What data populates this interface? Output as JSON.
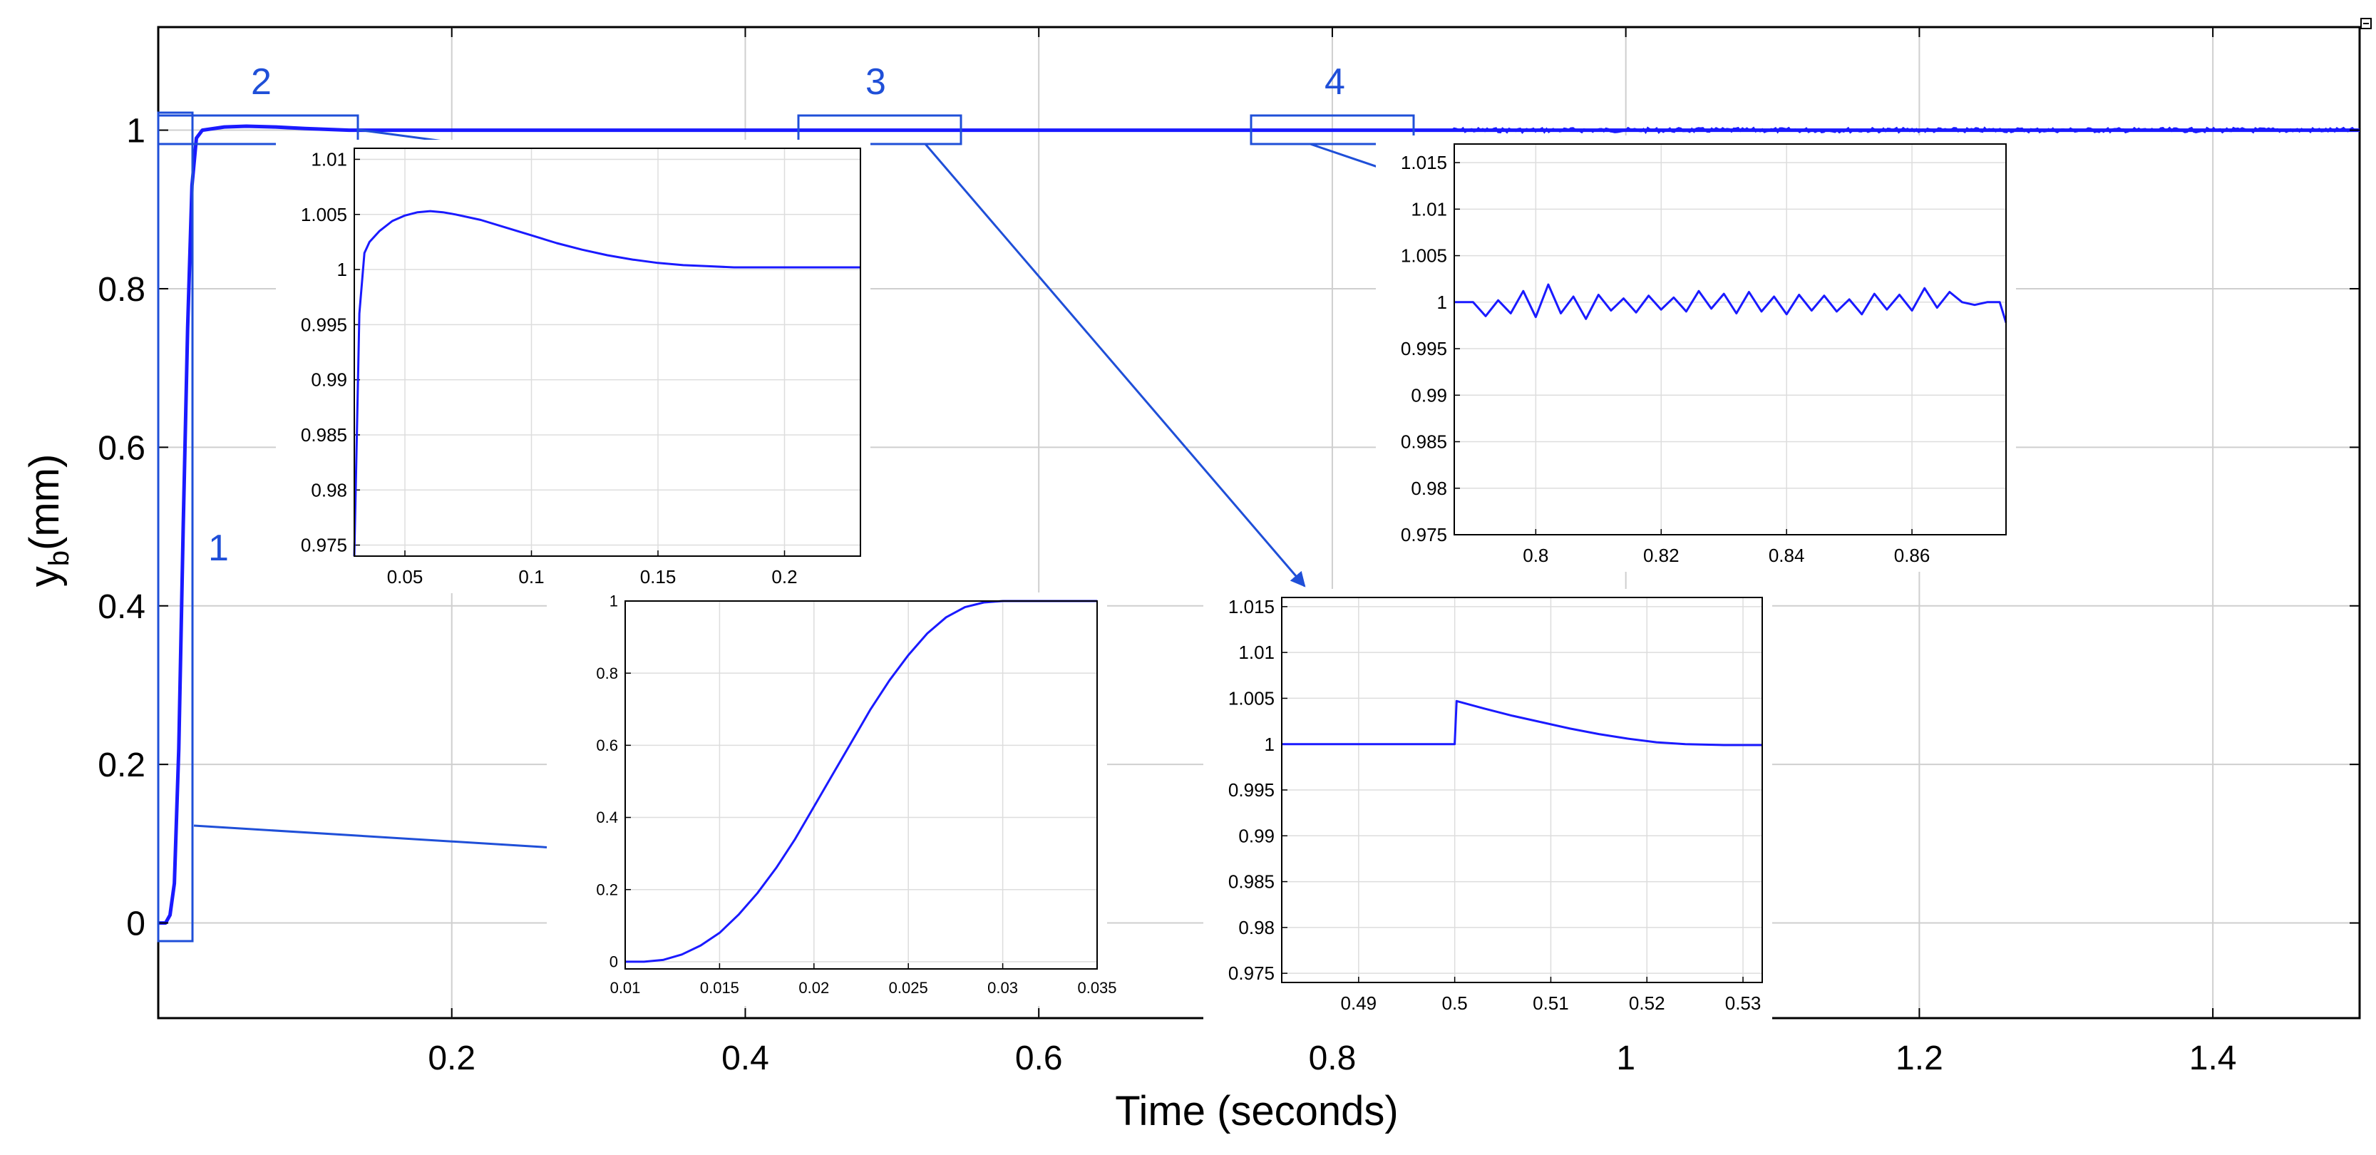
{
  "chart_data": {
    "type": "line",
    "title": "",
    "xlabel": "Time (seconds)",
    "ylabel_main": "y",
    "ylabel_sub": "b",
    "ylabel_unit": "(mm)",
    "line_color": "#1a1aff",
    "annotation_color": "#1f4fd8",
    "main": {
      "xlim": [
        0,
        1.5
      ],
      "ylim": [
        -0.12,
        1.13
      ],
      "xticks": [
        0.2,
        0.4,
        0.6,
        0.8,
        1,
        1.2,
        1.4
      ],
      "xtick_labels": [
        "0.2",
        "0.4",
        "0.6",
        "0.8",
        "1",
        "1.2",
        "1.4"
      ],
      "yticks": [
        0,
        0.2,
        0.4,
        0.6,
        0.8,
        1
      ],
      "ytick_labels": [
        "0",
        "0.2",
        "0.4",
        "0.6",
        "0.8",
        "1"
      ],
      "series": [
        {
          "name": "y_b",
          "x": [
            0,
            0.002,
            0.005,
            0.008,
            0.011,
            0.014,
            0.017,
            0.02,
            0.023,
            0.026,
            0.03,
            0.045,
            0.06,
            0.08,
            0.1,
            0.13,
            0.16,
            0.2,
            0.25,
            0.3,
            0.4,
            0.5,
            0.6,
            0.7,
            0.8,
            0.9,
            1.0,
            1.2,
            1.4,
            1.5
          ],
          "y": [
            0,
            0,
            0,
            0.01,
            0.05,
            0.22,
            0.5,
            0.75,
            0.93,
            0.99,
            1.0,
            1.004,
            1.005,
            1.004,
            1.002,
            1.0,
            1.0,
            1.0,
            1.0,
            1.0,
            1.0,
            1.0,
            1.0,
            1.0,
            1.0,
            1.0,
            1.0,
            1.0,
            1.0,
            1.0
          ]
        }
      ]
    },
    "zoom_labels": [
      "1",
      "2",
      "3",
      "4"
    ],
    "insets": [
      {
        "id": "1",
        "xlim": [
          0.01,
          0.035
        ],
        "ylim": [
          -0.02,
          1.0
        ],
        "xticks": [
          0.01,
          0.015,
          0.02,
          0.025,
          0.03,
          0.035
        ],
        "xtick_labels": [
          "0.01",
          "0.015",
          "0.02",
          "0.025",
          "0.03",
          "0.035"
        ],
        "yticks": [
          0,
          0.2,
          0.4,
          0.6,
          0.8,
          1
        ],
        "ytick_labels": [
          "0",
          "0.2",
          "0.4",
          "0.6",
          "0.8",
          "1"
        ],
        "x": [
          0.01,
          0.011,
          0.012,
          0.013,
          0.014,
          0.015,
          0.016,
          0.017,
          0.018,
          0.019,
          0.02,
          0.021,
          0.022,
          0.023,
          0.024,
          0.025,
          0.026,
          0.027,
          0.028,
          0.029,
          0.03,
          0.031,
          0.033,
          0.035
        ],
        "y": [
          0,
          0,
          0.005,
          0.02,
          0.045,
          0.08,
          0.13,
          0.19,
          0.26,
          0.34,
          0.43,
          0.52,
          0.61,
          0.7,
          0.78,
          0.85,
          0.91,
          0.955,
          0.983,
          0.996,
          1.0,
          1.0,
          1.0,
          1.0
        ]
      },
      {
        "id": "2",
        "xlim": [
          0.03,
          0.23
        ],
        "ylim": [
          0.974,
          1.011
        ],
        "xticks": [
          0.05,
          0.1,
          0.15,
          0.2
        ],
        "xtick_labels": [
          "0.05",
          "0.1",
          "0.15",
          "0.2"
        ],
        "yticks": [
          0.975,
          0.98,
          0.985,
          0.99,
          0.995,
          1,
          1.005,
          1.01
        ],
        "ytick_labels": [
          "0.975",
          "0.98",
          "0.985",
          "0.99",
          "0.995",
          "1",
          "1.005",
          "1.01"
        ],
        "x": [
          0.03,
          0.031,
          0.032,
          0.034,
          0.036,
          0.04,
          0.045,
          0.05,
          0.055,
          0.06,
          0.065,
          0.07,
          0.08,
          0.09,
          0.1,
          0.11,
          0.12,
          0.13,
          0.14,
          0.15,
          0.16,
          0.17,
          0.18,
          0.2,
          0.23
        ],
        "y": [
          0.974,
          0.985,
          0.996,
          1.0015,
          1.0025,
          1.0035,
          1.0044,
          1.0049,
          1.0052,
          1.0053,
          1.0052,
          1.005,
          1.0045,
          1.0038,
          1.0031,
          1.0024,
          1.0018,
          1.0013,
          1.0009,
          1.0006,
          1.0004,
          1.0003,
          1.0002,
          1.0002,
          1.0002
        ]
      },
      {
        "id": "3",
        "xlim": [
          0.482,
          0.532
        ],
        "ylim": [
          0.974,
          1.016
        ],
        "xticks": [
          0.49,
          0.5,
          0.51,
          0.52,
          0.53
        ],
        "xtick_labels": [
          "0.49",
          "0.5",
          "0.51",
          "0.52",
          "0.53"
        ],
        "yticks": [
          0.975,
          0.98,
          0.985,
          0.99,
          0.995,
          1,
          1.005,
          1.01,
          1.015
        ],
        "ytick_labels": [
          "0.975",
          "0.98",
          "0.985",
          "0.99",
          "0.995",
          "1",
          "1.005",
          "1.01",
          "1.015"
        ],
        "x": [
          0.482,
          0.4999,
          0.5,
          0.5002,
          0.503,
          0.506,
          0.509,
          0.512,
          0.515,
          0.518,
          0.521,
          0.524,
          0.528,
          0.532
        ],
        "y": [
          1.0,
          1.0,
          1.0,
          1.0047,
          1.0039,
          1.0031,
          1.0024,
          1.0017,
          1.0011,
          1.0006,
          1.0002,
          1.0,
          0.9999,
          0.9999
        ]
      },
      {
        "id": "4",
        "xlim": [
          0.787,
          0.875
        ],
        "ylim": [
          0.975,
          1.017
        ],
        "xticks": [
          0.8,
          0.82,
          0.84,
          0.86
        ],
        "xtick_labels": [
          "0.8",
          "0.82",
          "0.84",
          "0.86"
        ],
        "yticks": [
          0.975,
          0.98,
          0.985,
          0.99,
          0.995,
          1,
          1.005,
          1.01,
          1.015
        ],
        "ytick_labels": [
          "0.975",
          "0.98",
          "0.985",
          "0.99",
          "0.995",
          "1",
          "1.005",
          "1.01",
          "1.015"
        ],
        "x": [
          0.787,
          0.79,
          0.792,
          0.794,
          0.796,
          0.798,
          0.8,
          0.802,
          0.804,
          0.806,
          0.808,
          0.81,
          0.812,
          0.814,
          0.816,
          0.818,
          0.82,
          0.822,
          0.824,
          0.826,
          0.828,
          0.83,
          0.832,
          0.834,
          0.836,
          0.838,
          0.84,
          0.842,
          0.844,
          0.846,
          0.848,
          0.85,
          0.852,
          0.854,
          0.856,
          0.858,
          0.86,
          0.862,
          0.864,
          0.866,
          0.868,
          0.87,
          0.872,
          0.874,
          0.875
        ],
        "y": [
          1.0,
          1.0,
          0.9985,
          1.0002,
          0.9988,
          1.0012,
          0.9984,
          1.0019,
          0.9988,
          1.0006,
          0.9982,
          1.0008,
          0.9991,
          1.0004,
          0.9989,
          1.0007,
          0.9992,
          1.0005,
          0.999,
          1.0012,
          0.9993,
          1.0009,
          0.9988,
          1.0011,
          0.999,
          1.0006,
          0.9987,
          1.0008,
          0.9991,
          1.0007,
          0.999,
          1.0003,
          0.9987,
          1.0009,
          0.9992,
          1.0008,
          0.9991,
          1.0015,
          0.9994,
          1.0011,
          1.0,
          0.9997,
          1.0,
          1.0,
          0.9978
        ]
      }
    ]
  }
}
